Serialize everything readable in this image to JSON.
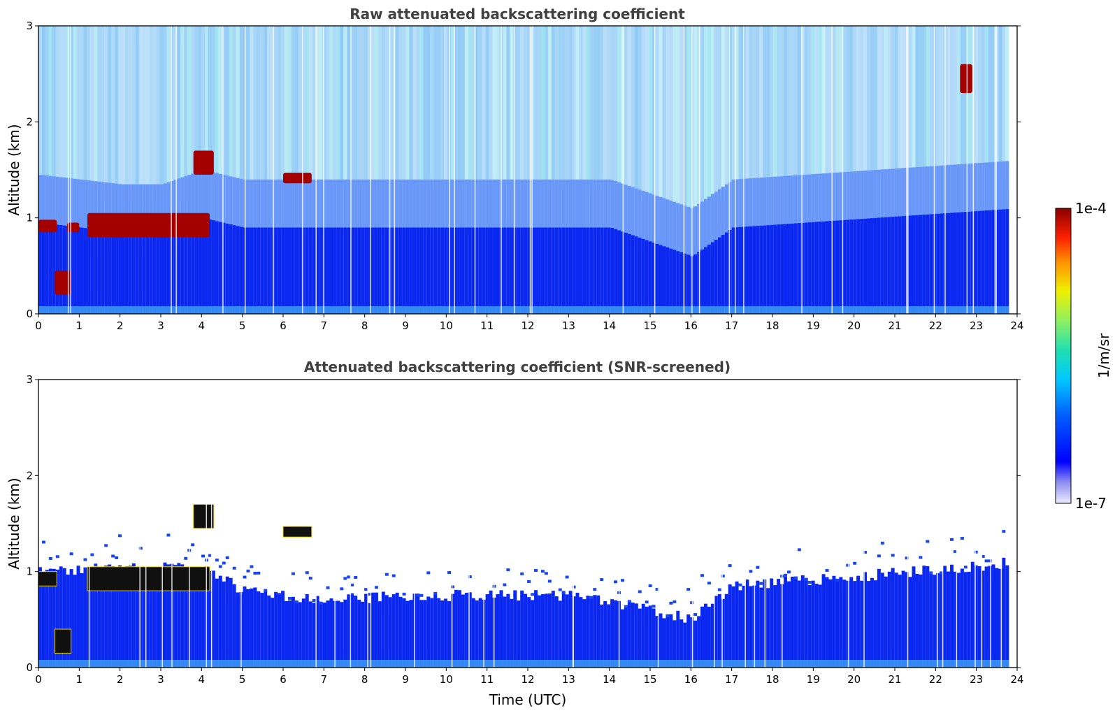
{
  "chart_data": [
    {
      "type": "heatmap",
      "title": "Raw attenuated backscattering coefficient",
      "xlabel": "",
      "ylabel": "Altitude (km)",
      "xlim": [
        0,
        24
      ],
      "ylim": [
        0,
        3
      ],
      "x_ticks": [
        "0",
        "1",
        "2",
        "3",
        "4",
        "5",
        "6",
        "7",
        "8",
        "9",
        "10",
        "11",
        "12",
        "13",
        "14",
        "15",
        "16",
        "17",
        "18",
        "19",
        "20",
        "21",
        "22",
        "23",
        "24"
      ],
      "y_ticks": [
        "0",
        "1",
        "2",
        "3"
      ],
      "colorscale": "jet",
      "features": {
        "boundary_layer_top_km": [
          {
            "t": 0,
            "z": 0.95
          },
          {
            "t": 2,
            "z": 0.85
          },
          {
            "t": 3,
            "z": 0.85
          },
          {
            "t": 4,
            "z": 1.0
          },
          {
            "t": 5,
            "z": 0.9
          },
          {
            "t": 10,
            "z": 0.9
          },
          {
            "t": 14,
            "z": 0.9
          },
          {
            "t": 16,
            "z": 0.6
          },
          {
            "t": 17,
            "z": 0.9
          },
          {
            "t": 24,
            "z": 1.1
          }
        ],
        "cloud_segments": [
          {
            "t0": 0.0,
            "t1": 0.45,
            "z0": 0.85,
            "z1": 0.98
          },
          {
            "t0": 0.7,
            "t1": 1.0,
            "z0": 0.85,
            "z1": 0.95
          },
          {
            "t0": 1.2,
            "t1": 4.2,
            "z0": 0.8,
            "z1": 1.05
          },
          {
            "t0": 0.4,
            "t1": 0.8,
            "z0": 0.2,
            "z1": 0.45
          },
          {
            "t0": 3.8,
            "t1": 4.3,
            "z0": 1.45,
            "z1": 1.7
          },
          {
            "t0": 6.0,
            "t1": 6.7,
            "z0": 1.36,
            "z1": 1.47
          },
          {
            "t0": 22.6,
            "t1": 22.9,
            "z0": 2.3,
            "z1": 2.6
          }
        ]
      }
    },
    {
      "type": "heatmap",
      "title": "Attenuated backscattering coefficient (SNR-screened)",
      "xlabel": "Time (UTC)",
      "ylabel": "Altitude (km)",
      "xlim": [
        0,
        24
      ],
      "ylim": [
        0,
        3
      ],
      "x_ticks": [
        "0",
        "1",
        "2",
        "3",
        "4",
        "5",
        "6",
        "7",
        "8",
        "9",
        "10",
        "11",
        "12",
        "13",
        "14",
        "15",
        "16",
        "17",
        "18",
        "19",
        "20",
        "21",
        "22",
        "23",
        "24"
      ],
      "y_ticks": [
        "0",
        "1",
        "2",
        "3"
      ],
      "colorscale": "jet",
      "features": {
        "screened_layer_top_km": [
          {
            "t": 0,
            "z": 1.0
          },
          {
            "t": 4,
            "z": 1.05
          },
          {
            "t": 5,
            "z": 0.8
          },
          {
            "t": 7,
            "z": 0.7
          },
          {
            "t": 9,
            "z": 0.75
          },
          {
            "t": 13,
            "z": 0.75
          },
          {
            "t": 15,
            "z": 0.6
          },
          {
            "t": 16,
            "z": 0.5
          },
          {
            "t": 17,
            "z": 0.85
          },
          {
            "t": 20,
            "z": 0.95
          },
          {
            "t": 24,
            "z": 1.1
          }
        ]
      }
    }
  ],
  "colorbar": {
    "label": "1/m/sr",
    "max_label": "1e-4",
    "min_label": "1e-7",
    "scale": "log",
    "range": [
      1e-07,
      0.0001
    ]
  },
  "colors": {
    "title": "#404040",
    "background": "#ffffff",
    "cloud": "#a50000",
    "aerosol": "#0a1ef0"
  }
}
